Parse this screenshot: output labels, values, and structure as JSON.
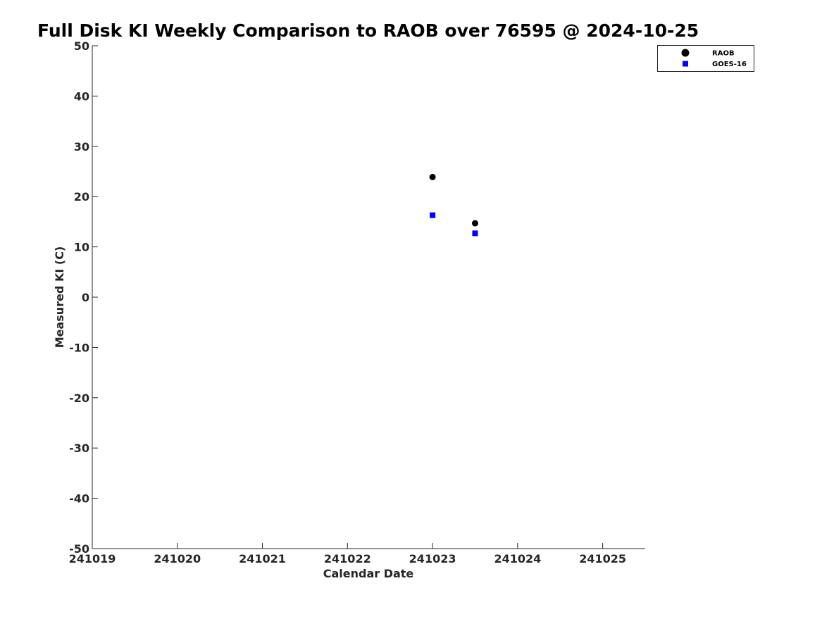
{
  "chart_data": {
    "type": "scatter",
    "title": "Full Disk KI Weekly Comparison to RAOB over 76595 @ 2024-10-25",
    "xlabel": "Calendar Date",
    "ylabel": "Measured KI (C)",
    "x_ticks": [
      241019,
      241020,
      241021,
      241022,
      241023,
      241024,
      241025
    ],
    "x_tick_labels": [
      "241019",
      "241020",
      "241021",
      "241022",
      "241023",
      "241024",
      "241025"
    ],
    "xlim": [
      241019,
      241025.5
    ],
    "ylim": [
      -50,
      50
    ],
    "y_ticks": [
      -50,
      -40,
      -30,
      -20,
      -10,
      0,
      10,
      20,
      30,
      40,
      50
    ],
    "y_tick_labels": [
      "-50",
      "-40",
      "-30",
      "-20",
      "-10",
      "0",
      "10",
      "20",
      "30",
      "40",
      "50"
    ],
    "grid": false,
    "legend_position": "top-right",
    "series": [
      {
        "name": "RAOB",
        "marker": "circle",
        "color": "#000000",
        "points": [
          {
            "x": 241023.0,
            "y": 23.9
          },
          {
            "x": 241023.5,
            "y": 14.7
          }
        ]
      },
      {
        "name": "GOES-16",
        "marker": "square",
        "color": "#0000ff",
        "points": [
          {
            "x": 241023.0,
            "y": 16.3
          },
          {
            "x": 241023.5,
            "y": 12.7
          }
        ]
      }
    ]
  }
}
